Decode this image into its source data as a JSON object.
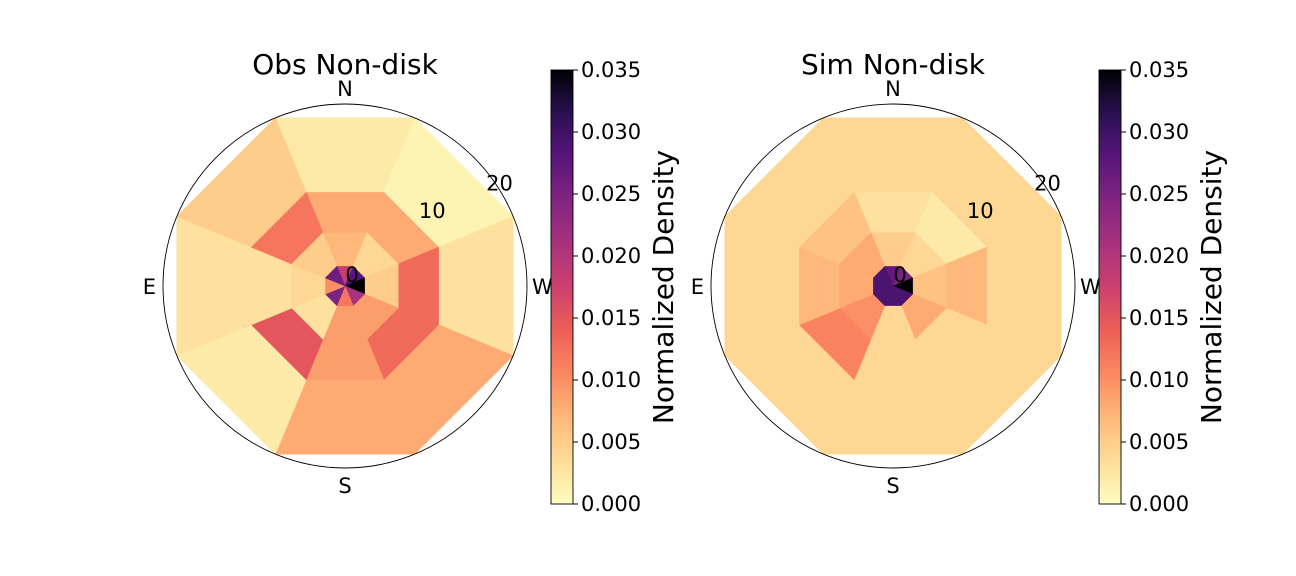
{
  "chart_data": [
    {
      "type": "heatmap",
      "subtype": "polar-sector",
      "title": "Obs Non-disk",
      "direction_labels": [
        "N",
        "W",
        "S",
        "E"
      ],
      "radial_tick_labels": [
        "0",
        "10",
        "20"
      ],
      "radial_ticks": [
        0,
        10,
        20
      ],
      "radial_edges": [
        0,
        3,
        8,
        14,
        25
      ],
      "rmax": 25,
      "sector_count": 8,
      "sector_order": "clockwise from N (N, NW, W, SW, S, SE, E, NE)",
      "density": [
        [
          0.018,
          0.028,
          0.035,
          0.021,
          0.012,
          0.025,
          0.01,
          0.026
        ],
        [
          0.007,
          0.004,
          0.005,
          0.009,
          0.009,
          0.003,
          0.004,
          0.005
        ],
        [
          0.008,
          0.008,
          0.013,
          0.013,
          0.009,
          0.015,
          0.003,
          0.012
        ],
        [
          0.002,
          0.001,
          0.003,
          0.008,
          0.008,
          0.002,
          0.003,
          0.005
        ]
      ],
      "colorbar": {
        "label": "Normalized Density",
        "min": 0.0,
        "max": 0.035,
        "tick_labels": [
          "0.000",
          "0.005",
          "0.010",
          "0.015",
          "0.020",
          "0.025",
          "0.030",
          "0.035"
        ],
        "colormap": "magma_r"
      }
    },
    {
      "type": "heatmap",
      "subtype": "polar-sector",
      "title": "Sim Non-disk",
      "direction_labels": [
        "N",
        "W",
        "S",
        "E"
      ],
      "radial_tick_labels": [
        "0",
        "10",
        "20"
      ],
      "radial_ticks": [
        0,
        10,
        20
      ],
      "radial_edges": [
        0,
        3,
        8,
        14,
        25
      ],
      "rmax": 25,
      "sector_count": 8,
      "sector_order": "clockwise from N (N, NW, W, SW, S, SE, E, NE)",
      "density": [
        [
          0.027,
          0.025,
          0.035,
          0.029,
          0.029,
          0.029,
          0.029,
          0.029
        ],
        [
          0.005,
          0.004,
          0.006,
          0.008,
          0.004,
          0.01,
          0.008,
          0.008
        ],
        [
          0.003,
          0.002,
          0.007,
          0.004,
          0.004,
          0.011,
          0.007,
          0.006
        ],
        [
          0.004,
          0.004,
          0.004,
          0.004,
          0.004,
          0.004,
          0.004,
          0.004
        ]
      ],
      "colorbar": {
        "label": "Normalized Density",
        "min": 0.0,
        "max": 0.035,
        "tick_labels": [
          "0.000",
          "0.005",
          "0.010",
          "0.015",
          "0.020",
          "0.025",
          "0.030",
          "0.035"
        ],
        "colormap": "magma_r"
      }
    }
  ]
}
